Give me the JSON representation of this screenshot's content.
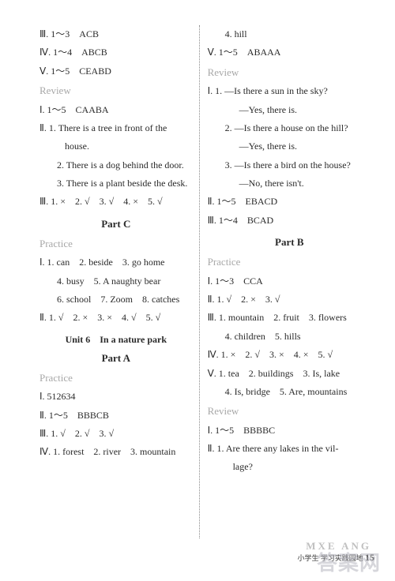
{
  "left": {
    "l1": "Ⅲ. 1～3　ACB",
    "l2": "Ⅳ. 1～4　ABCB",
    "l3": "Ⅴ. 1～5　CEABD",
    "review": "Review",
    "l4": "Ⅰ. 1～5　CAABA",
    "l5": "Ⅱ. 1. There is a tree in front of the",
    "l5b": "house.",
    "l6": "2. There is a dog behind the door.",
    "l7": "3. There is a plant beside the desk.",
    "l8": "Ⅲ. 1. ×　2. √　3. √　4. ×　5. √",
    "partC": "Part C",
    "practice1": "Practice",
    "p1": "Ⅰ. 1. can　2. beside　3. go home",
    "p2": "4. busy　5. A naughty bear",
    "p3": "6. school　7. Zoom　8. catches",
    "p4": "Ⅱ. 1. √　2. ×　3. ×　4. √　5. √",
    "unit6": "Unit 6　In a nature park",
    "partA": "Part A",
    "practice2": "Practice",
    "a1": "Ⅰ. 512634",
    "a2": "Ⅱ. 1～5　BBBCB",
    "a3": "Ⅲ. 1. √　2. √　3. √",
    "a4": "Ⅳ. 1. forest　2. river　3. mountain"
  },
  "right": {
    "r1": "4. hill",
    "r2": "Ⅴ. 1～5　ABAAA",
    "review": "Review",
    "r3": "Ⅰ. 1. —Is there a sun in the sky?",
    "r3b": "—Yes, there is.",
    "r4": "2. —Is there a house on the hill?",
    "r4b": "—Yes, there is.",
    "r5": "3. —Is there a bird on the house?",
    "r5b": "—No, there isn't.",
    "r6": "Ⅱ. 1～5　EBACD",
    "r7": "Ⅲ. 1～4　BCAD",
    "partB": "Part B",
    "practice": "Practice",
    "b1": "Ⅰ. 1～3　CCA",
    "b2": "Ⅱ. 1. √　2. ×　3. √",
    "b3": "Ⅲ. 1. mountain　2. fruit　3. flowers",
    "b3b": "4. children　5. hills",
    "b4": "Ⅳ. 1. ×　2. √　3. ×　4. ×　5. √",
    "b5": "Ⅴ. 1. tea　2. buildings　3. Is, lake",
    "b5b": "4. Is, bridge　5. Are, mountains",
    "review2": "Review",
    "c1": "Ⅰ. 1～5　BBBBC",
    "c2": "Ⅱ. 1. Are there any lakes in the vil-",
    "c2b": "lage?"
  },
  "footer": {
    "text": "小学生 学习实践园地 ",
    "page": "15"
  },
  "watermarks": {
    "w1": "",
    "w2": "答案网",
    "w3": "MXE ANG"
  }
}
